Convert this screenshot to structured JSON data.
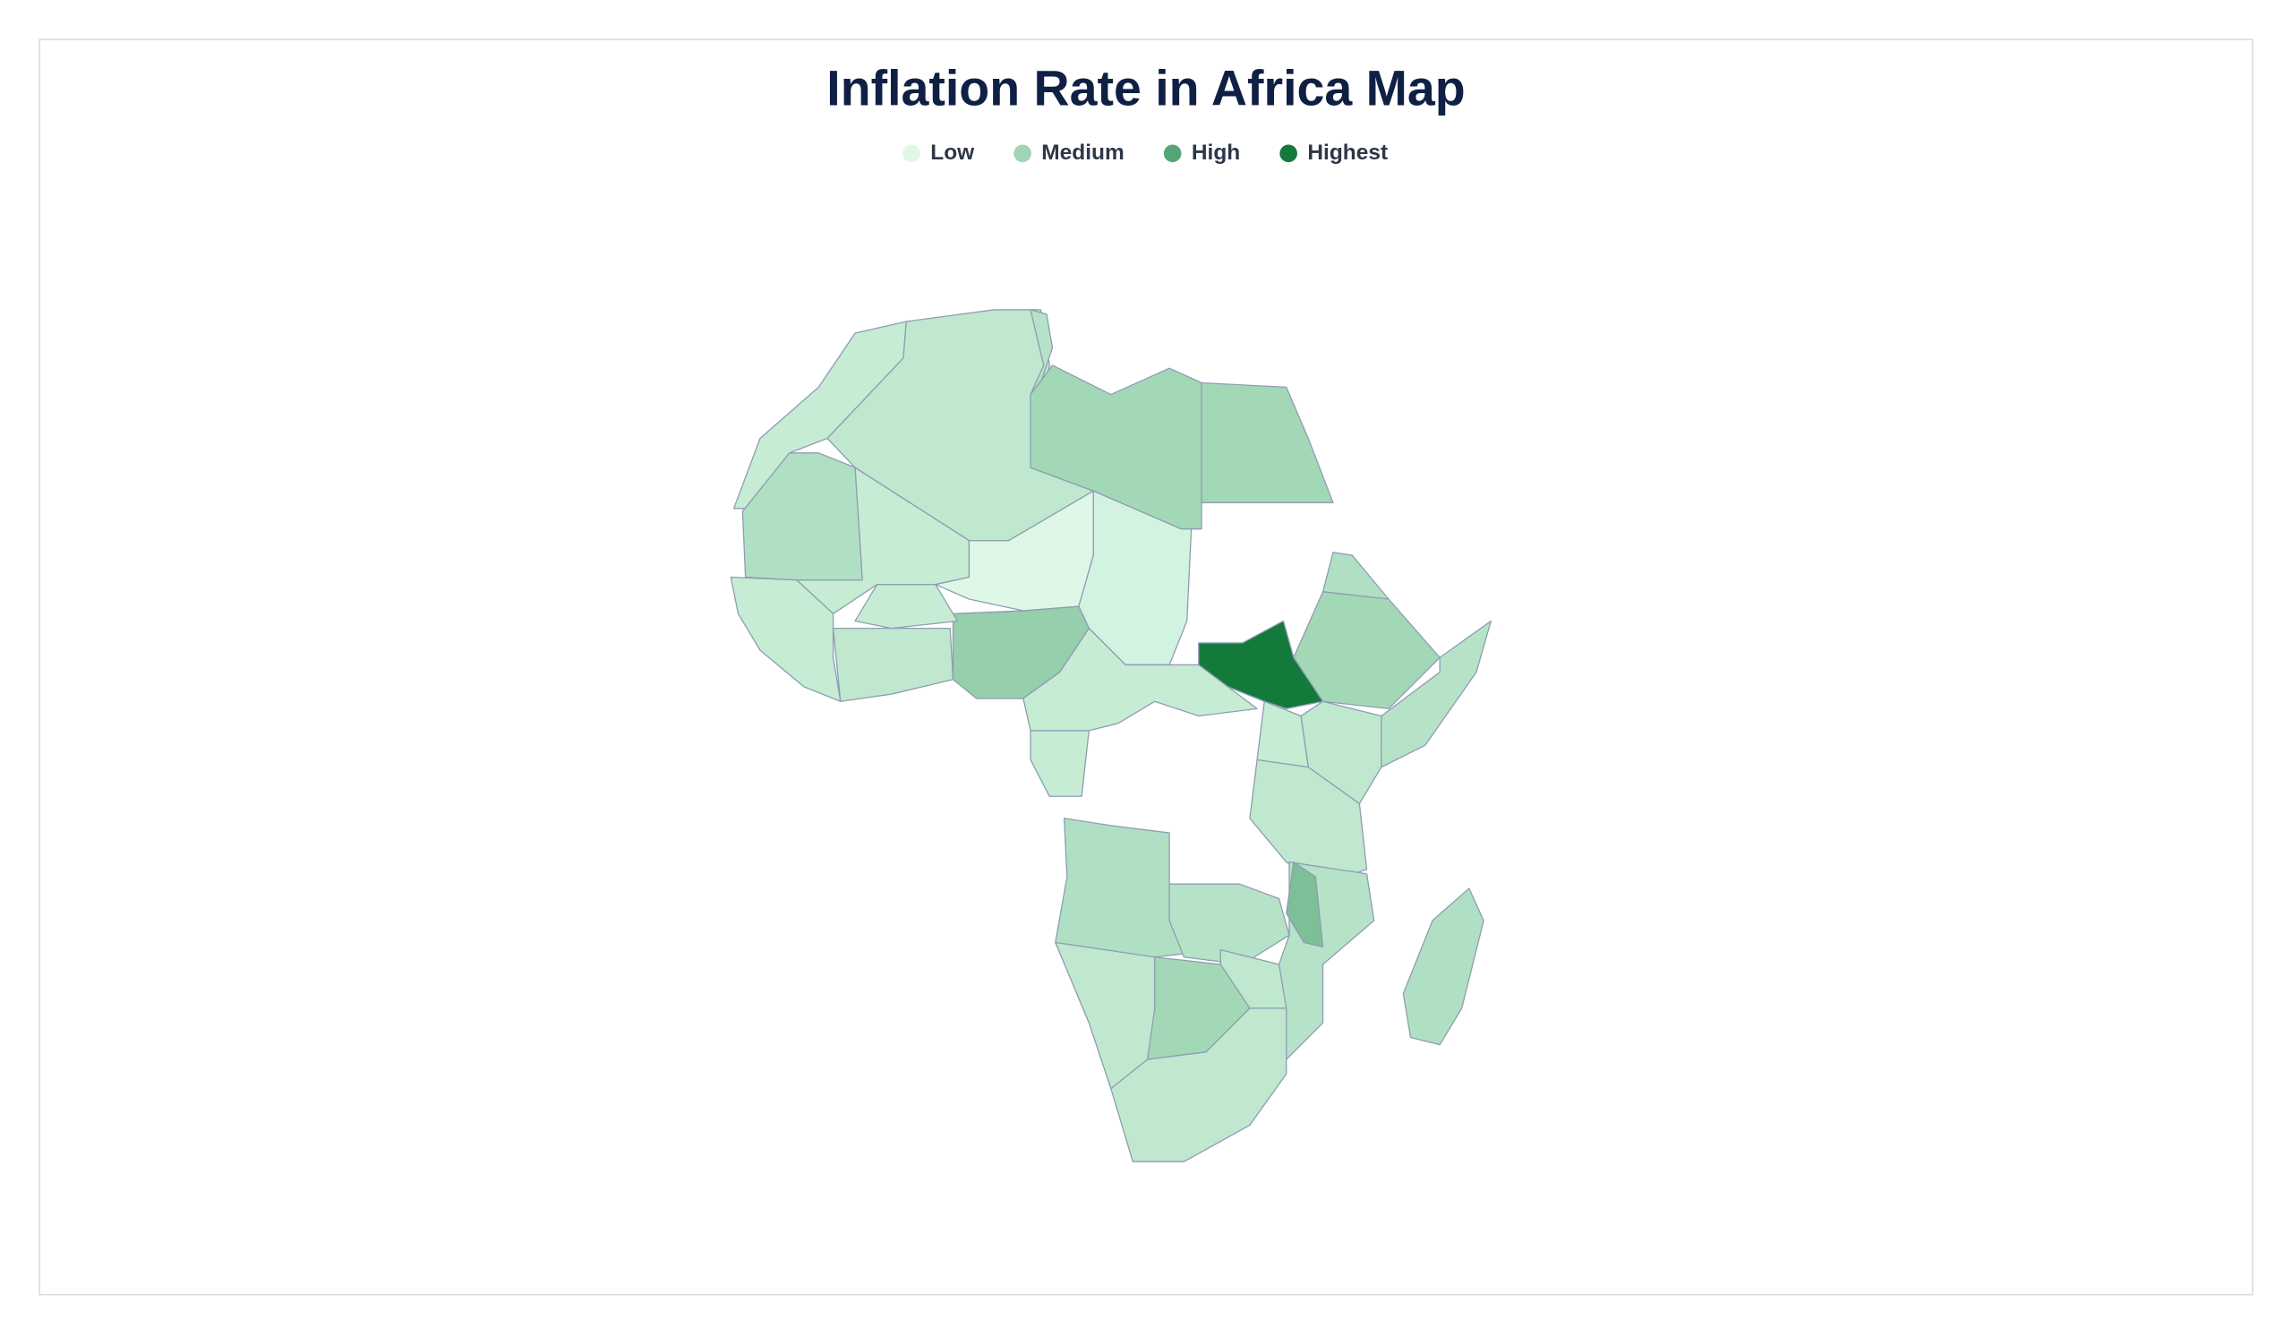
{
  "title": "Inflation Rate in Africa Map",
  "legend": [
    {
      "label": "Low",
      "color": "#dff7e6"
    },
    {
      "label": "Medium",
      "color": "#9fd5b3"
    },
    {
      "label": "High",
      "color": "#55a676"
    },
    {
      "label": "Highest",
      "color": "#137a3c"
    }
  ]
}
